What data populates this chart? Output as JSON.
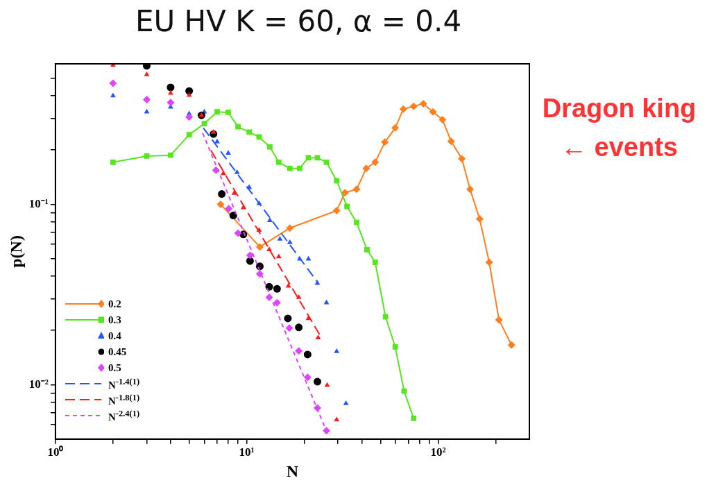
{
  "chart_data": {
    "type": "scatter",
    "title": "EU HV K = 60, α = 0.4",
    "xlabel": "N",
    "ylabel": "p(N)",
    "log": "xy",
    "grid": false,
    "legend": "bottom left",
    "xlim": [
      1,
      300
    ],
    "ylim": [
      0.005,
      0.6
    ],
    "xticks": [
      {
        "value": 1,
        "label": "10⁰"
      },
      {
        "value": 2,
        "label": null
      },
      {
        "value": 3,
        "label": null
      },
      {
        "value": 4,
        "label": null
      },
      {
        "value": 5,
        "label": null
      },
      {
        "value": 6,
        "label": null
      },
      {
        "value": 7,
        "label": null
      },
      {
        "value": 8,
        "label": null
      },
      {
        "value": 9,
        "label": null
      },
      {
        "value": 10,
        "label": "10¹"
      },
      {
        "value": 20,
        "label": null
      },
      {
        "value": 30,
        "label": null
      },
      {
        "value": 40,
        "label": null
      },
      {
        "value": 50,
        "label": null
      },
      {
        "value": 60,
        "label": null
      },
      {
        "value": 70,
        "label": null
      },
      {
        "value": 80,
        "label": null
      },
      {
        "value": 90,
        "label": null
      },
      {
        "value": 100,
        "label": "10²"
      },
      {
        "value": 200,
        "label": null
      }
    ],
    "yticks": [
      {
        "value": 0.006,
        "label": null
      },
      {
        "value": 0.007,
        "label": null
      },
      {
        "value": 0.008,
        "label": null
      },
      {
        "value": 0.009,
        "label": null
      },
      {
        "value": 0.01,
        "label": "10⁻²"
      },
      {
        "value": 0.02,
        "label": null
      },
      {
        "value": 0.03,
        "label": null
      },
      {
        "value": 0.04,
        "label": null
      },
      {
        "value": 0.05,
        "label": null
      },
      {
        "value": 0.06,
        "label": null
      },
      {
        "value": 0.07,
        "label": null
      },
      {
        "value": 0.08,
        "label": null
      },
      {
        "value": 0.09,
        "label": null
      },
      {
        "value": 0.1,
        "label": "10⁻¹"
      },
      {
        "value": 0.2,
        "label": null
      },
      {
        "value": 0.3,
        "label": null
      },
      {
        "value": 0.4,
        "label": null
      },
      {
        "value": 0.5,
        "label": null
      }
    ],
    "annotations": [
      "Dragon king",
      "← events"
    ],
    "series": [
      {
        "name": "0.2",
        "type": "line",
        "color": "#ff7f1e",
        "marker": "diamond",
        "line_style": "solid",
        "x": [
          7.3,
          11.7,
          16.8,
          29.5,
          32.6,
          37.5,
          42.1,
          46.9,
          52.7,
          59.7,
          65.8,
          74.5,
          83.7,
          94,
          105.5,
          117,
          133,
          147,
          165,
          185,
          208,
          242
        ],
        "values": [
          0.1,
          0.058,
          0.0738,
          0.0923,
          0.116,
          0.121,
          0.158,
          0.171,
          0.221,
          0.265,
          0.337,
          0.349,
          0.361,
          0.325,
          0.294,
          0.223,
          0.179,
          0.121,
          0.0829,
          0.0477,
          0.0229,
          0.0166
        ]
      },
      {
        "name": "0.3",
        "type": "line",
        "color": "#55e61e",
        "marker": "square",
        "line_style": "solid",
        "x": [
          2,
          3,
          4,
          5,
          6,
          7,
          8,
          9,
          10.3,
          11.6,
          13.2,
          14.7,
          16.8,
          18.9,
          21,
          23.4,
          26.1,
          29.5,
          33.4,
          37.5,
          42.5,
          46.9,
          53.1,
          59.7,
          66.4,
          74.5
        ],
        "values": [
          0.171,
          0.185,
          0.187,
          0.243,
          0.28,
          0.325,
          0.323,
          0.269,
          0.251,
          0.236,
          0.208,
          0.171,
          0.158,
          0.158,
          0.181,
          0.181,
          0.171,
          0.135,
          0.0973,
          0.0793,
          0.056,
          0.0477,
          0.0238,
          0.0162,
          0.00923,
          0.00652
        ]
      },
      {
        "name": "0.4",
        "type": "scatter",
        "color": "#2255ff",
        "marker": "triangle",
        "x": [
          2,
          3,
          4,
          5,
          6,
          7,
          8,
          8.9,
          10.3,
          11.6,
          13.2,
          14.9,
          16.8,
          18.9,
          21,
          23.4,
          26.1,
          29.5,
          33
        ],
        "values": [
          0.399,
          0.325,
          0.346,
          0.317,
          0.325,
          0.222,
          0.192,
          0.15,
          0.124,
          0.101,
          0.0814,
          0.0642,
          0.0614,
          0.0498,
          0.0498,
          0.0365,
          0.0285,
          0.0153,
          0.00788
        ]
      },
      {
        "name": "0.45",
        "type": "scatter",
        "color": "#000000",
        "marker": "circle",
        "x": [
          3,
          4,
          5,
          5.8,
          6.7,
          7.4,
          8.5,
          9.6,
          10.4,
          11.7,
          13.1,
          14.4,
          16.4,
          18.7,
          20.8,
          23.4
        ],
        "values": [
          0.585,
          0.444,
          0.424,
          0.311,
          0.245,
          0.114,
          0.0867,
          0.0681,
          0.0485,
          0.0453,
          0.0349,
          0.034,
          0.0233,
          0.0208,
          0.0147,
          0.0104
        ]
      },
      {
        "name": "0.5",
        "type": "scatter",
        "color": "#dd44ff",
        "marker": "diamond",
        "x": [
          2,
          3,
          4,
          5,
          6.9,
          8.05,
          9,
          10.4,
          11.7,
          13.1,
          14.4,
          16.7,
          18.7,
          20.8,
          23.4,
          26.1
        ],
        "values": [
          0.468,
          0.38,
          0.366,
          0.304,
          0.1545,
          0.0945,
          0.0692,
          0.0521,
          0.0411,
          0.0305,
          0.0285,
          0.0206,
          0.0154,
          0.011,
          0.00743,
          0.00556
        ]
      },
      {
        "type": "scatter",
        "color": "#ff1a1a",
        "marker": "triangle",
        "x": [
          2,
          3,
          4,
          5,
          5.8,
          6.7,
          7.55,
          8.6,
          9.6,
          11.6,
          13.1,
          14.7,
          16.5,
          18.7,
          21,
          23.6,
          26.3,
          29.5
        ],
        "values": [
          0.59,
          0.523,
          0.413,
          0.402,
          0.311,
          0.251,
          0.148,
          0.115,
          0.0958,
          0.0719,
          0.0561,
          0.0512,
          0.0352,
          0.0305,
          0.0233,
          0.0182,
          0.00994,
          0.0064
        ]
      },
      {
        "name": "N$^{-1.4(1)}$",
        "type": "line",
        "color": "#2255ff",
        "marker": "none",
        "line_style": "dashed",
        "x": [
          5.93,
          23.4
        ],
        "values": [
          0.265,
          0.0371
        ]
      },
      {
        "name": "N$^{-1.8(1)}$",
        "type": "line",
        "color": "#ff1a1a",
        "marker": "none",
        "line_style": "dashed",
        "x": [
          6.5,
          24
        ],
        "values": [
          0.199,
          0.019
        ]
      },
      {
        "name": "N$^{-2.4(1)}$",
        "type": "line",
        "color": "#dd44ff",
        "marker": "none",
        "line_style": "dotted",
        "x": [
          5.88,
          25.8
        ],
        "values": [
          0.248,
          0.0057
        ]
      }
    ]
  }
}
